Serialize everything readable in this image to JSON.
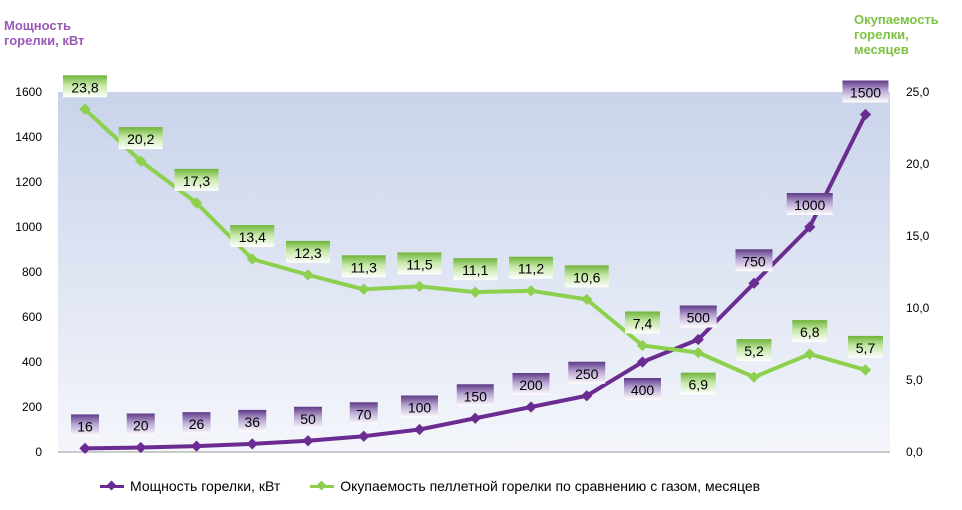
{
  "chart_data": {
    "type": "line",
    "ylabel_left": [
      "Мощность",
      "горелки, кВт"
    ],
    "ylabel_right": [
      "Окупаемость",
      "горелки,",
      "месяцев"
    ],
    "ylim_left": [
      0,
      1600
    ],
    "ylim_right": [
      0,
      25
    ],
    "yticks_left": [
      "0",
      "200",
      "400",
      "600",
      "800",
      "1000",
      "1200",
      "1400",
      "1600"
    ],
    "yticks_right": [
      "0,0",
      "5,0",
      "10,0",
      "15,0",
      "20,0",
      "25,0"
    ],
    "categories": [
      "",
      "",
      "",
      "",
      "",
      "",
      "",
      "",
      "",
      "",
      "",
      "",
      "",
      "",
      ""
    ],
    "series": [
      {
        "name": "Мощность горелки, кВт",
        "axis": "left",
        "color": "#6a2c91",
        "label_bg": "#8a6bab",
        "values": [
          16,
          20,
          26,
          36,
          50,
          70,
          100,
          150,
          200,
          250,
          400,
          500,
          750,
          1000,
          1500
        ],
        "labels": [
          "16",
          "20",
          "26",
          "36",
          "50",
          "70",
          "100",
          "150",
          "200",
          "250",
          "400",
          "500",
          "750",
          "1000",
          "1500"
        ]
      },
      {
        "name": "Окупаемость пеллетной горелки по сравнению с газом, месяцев",
        "axis": "right",
        "color": "#8cd04e",
        "label_bg": "#7dc242",
        "values": [
          23.8,
          20.2,
          17.3,
          13.4,
          12.3,
          11.3,
          11.5,
          11.1,
          11.2,
          10.6,
          7.4,
          6.9,
          5.2,
          6.8,
          5.7
        ],
        "labels": [
          "23,8",
          "20,2",
          "17,3",
          "13,4",
          "12,3",
          "11,3",
          "11,5",
          "11,1",
          "11,2",
          "10,6",
          "7,4",
          "6,9",
          "5,2",
          "6,8",
          "5,7"
        ]
      }
    ],
    "grid": false,
    "legend_position": "bottom"
  }
}
